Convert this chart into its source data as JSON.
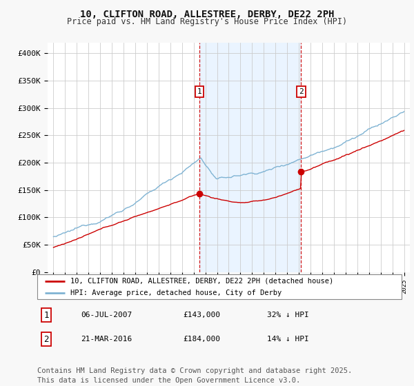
{
  "title": "10, CLIFTON ROAD, ALLESTREE, DERBY, DE22 2PH",
  "subtitle": "Price paid vs. HM Land Registry's House Price Index (HPI)",
  "title_fontsize": 10,
  "subtitle_fontsize": 8.5,
  "background_color": "#f8f8f8",
  "plot_bg_color": "#ffffff",
  "grid_color": "#cccccc",
  "ylabel_ticks": [
    "£0",
    "£50K",
    "£100K",
    "£150K",
    "£200K",
    "£250K",
    "£300K",
    "£350K",
    "£400K"
  ],
  "ytick_values": [
    0,
    50000,
    100000,
    150000,
    200000,
    250000,
    300000,
    350000,
    400000
  ],
  "ylim": [
    0,
    420000
  ],
  "hpi_color": "#7fb3d3",
  "price_color": "#cc0000",
  "vline_color": "#cc0000",
  "shade_color": "#ddeeff",
  "marker1_year": 2007.5,
  "marker2_year": 2016.2,
  "legend_label_price": "10, CLIFTON ROAD, ALLESTREE, DERBY, DE22 2PH (detached house)",
  "legend_label_hpi": "HPI: Average price, detached house, City of Derby",
  "table_row1": [
    "1",
    "06-JUL-2007",
    "£143,000",
    "32% ↓ HPI"
  ],
  "table_row2": [
    "2",
    "21-MAR-2016",
    "£184,000",
    "14% ↓ HPI"
  ],
  "footer": "Contains HM Land Registry data © Crown copyright and database right 2025.\nThis data is licensed under the Open Government Licence v3.0.",
  "footer_fontsize": 7.5
}
